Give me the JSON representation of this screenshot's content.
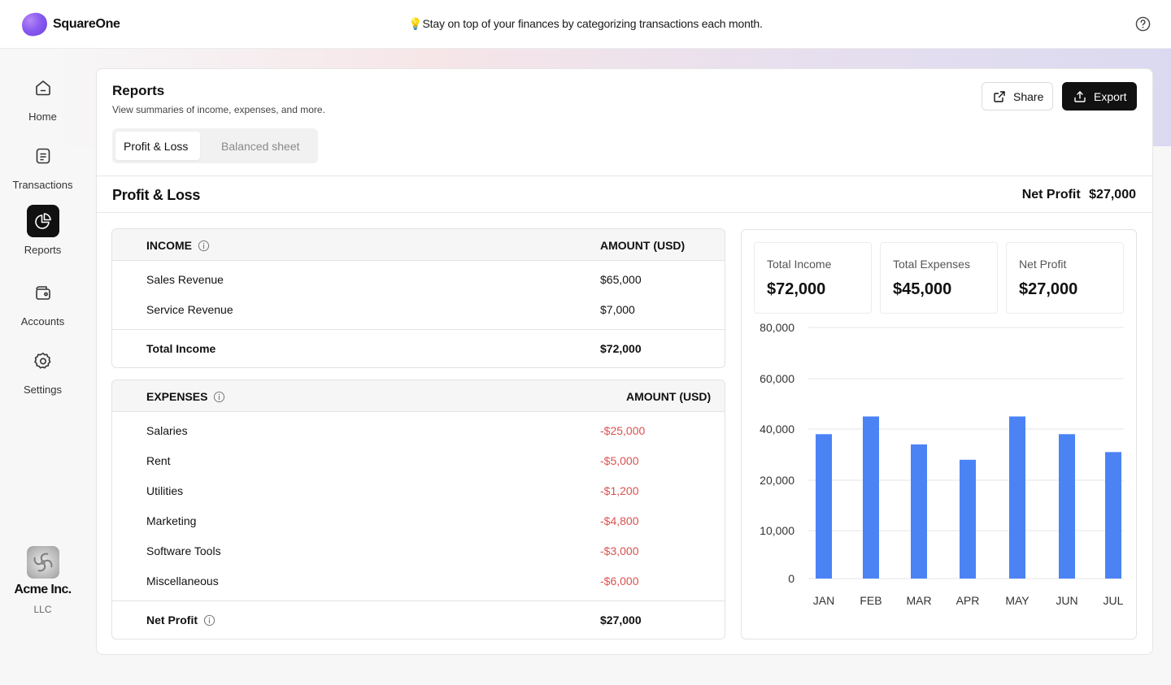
{
  "app": {
    "brand": "SquareOne",
    "tip": "💡Stay on top of your finances by categorizing transactions each month."
  },
  "sidebar": {
    "items": [
      {
        "label": "Home",
        "icon": "home-icon"
      },
      {
        "label": "Transactions",
        "icon": "receipt-icon"
      },
      {
        "label": "Reports",
        "icon": "pie-chart-icon",
        "active": true
      },
      {
        "label": "Accounts",
        "icon": "wallet-icon"
      },
      {
        "label": "Settings",
        "icon": "gear-icon"
      }
    ],
    "org": {
      "name": "Acme Inc.",
      "type": "LLC"
    }
  },
  "header": {
    "title": "Reports",
    "subtitle": "View summaries of income, expenses, and more.",
    "share_label": "Share",
    "export_label": "Export",
    "tabs": [
      {
        "label": "Profit & Loss",
        "active": true
      },
      {
        "label": "Balanced sheet",
        "active": false
      }
    ]
  },
  "report": {
    "title": "Profit & Loss",
    "net_profit_label": "Net Profit",
    "net_profit_value": "$27,000",
    "income": {
      "header": "INCOME",
      "amount_header": "AMOUNT (USD)",
      "rows": [
        {
          "label": "Sales Revenue",
          "amount": "$65,000"
        },
        {
          "label": "Service Revenue",
          "amount": "$7,000"
        }
      ],
      "total_label": "Total Income",
      "total_value": "$72,000"
    },
    "expenses": {
      "header": "EXPENSES",
      "amount_header": "AMOUNT (USD)",
      "rows": [
        {
          "label": "Salaries",
          "amount": "-$25,000"
        },
        {
          "label": "Rent",
          "amount": "-$5,000"
        },
        {
          "label": "Utilities",
          "amount": "-$1,200"
        },
        {
          "label": "Marketing",
          "amount": "-$4,800"
        },
        {
          "label": "Software Tools",
          "amount": "-$3,000"
        },
        {
          "label": "Miscellaneous",
          "amount": "-$6,000"
        }
      ],
      "net_label": "Net Profit",
      "net_value": "$27,000"
    }
  },
  "stats": [
    {
      "label": "Total Income",
      "value": "$72,000"
    },
    {
      "label": "Total Expenses",
      "value": "$45,000"
    },
    {
      "label": "Net Profit",
      "value": "$27,000"
    }
  ],
  "colors": {
    "bar": "#4b83f5",
    "negative": "#d9534f",
    "accent": "#111111"
  },
  "chart_data": {
    "type": "bar",
    "categories": [
      "JAN",
      "FEB",
      "MAR",
      "APR",
      "MAY",
      "JUN",
      "JUL"
    ],
    "values": [
      38000,
      45000,
      34000,
      28000,
      45000,
      38000,
      31000
    ],
    "y_ticks": [
      "80,000",
      "60,000",
      "40,000",
      "20,000",
      "10,000",
      "0"
    ],
    "y_tick_values": [
      80000,
      60000,
      40000,
      20000,
      10000,
      0
    ],
    "grid": true
  }
}
